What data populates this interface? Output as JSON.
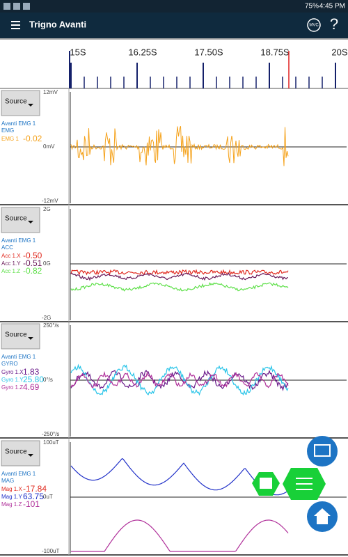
{
  "status_bar": {
    "battery": "75%",
    "time": "4:45 PM"
  },
  "app_bar": {
    "title": "Trigno Avanti",
    "mvc": "MVC",
    "help": "?"
  },
  "timeline": {
    "ticks": [
      "15S",
      "16.25S",
      "17.50S",
      "18.75S",
      "20S"
    ]
  },
  "panels": [
    {
      "button": "Source",
      "sensor": "Avanti EMG 1",
      "kind": "EMG",
      "axis": [
        "12mV",
        "0mV",
        "-12mV"
      ],
      "channels": [
        {
          "name": "EMG 1",
          "value": "-0.02",
          "color": "#f5a21b"
        }
      ]
    },
    {
      "button": "Source",
      "sensor": "Avanti EMG 1",
      "kind": "ACC",
      "axis": [
        "2G",
        "0G",
        "-2G"
      ],
      "channels": [
        {
          "name": "Acc 1.X",
          "value": "-0.50",
          "color": "#e0291e"
        },
        {
          "name": "Acc 1.Y",
          "value": "-0.51",
          "color": "#6a1a5a"
        },
        {
          "name": "Acc 1.Z",
          "value": "-0.82",
          "color": "#5fe04a"
        }
      ]
    },
    {
      "button": "Source",
      "sensor": "Avanti EMG 1",
      "kind": "GYRO",
      "axis": [
        "250°/s",
        "0°/s",
        "-250°/s"
      ],
      "channels": [
        {
          "name": "Gyro 1.X",
          "value": "1.83",
          "color": "#6a1a8a"
        },
        {
          "name": "Gyro 1.Y",
          "value": "25.80",
          "color": "#28c4e8"
        },
        {
          "name": "Gyro 1.Z",
          "value": "4.69",
          "color": "#b0309a"
        }
      ]
    },
    {
      "button": "Source",
      "sensor": "Avanti EMG 1",
      "kind": "MAG",
      "axis": [
        "100uT",
        "0uT",
        "-100uT"
      ],
      "channels": [
        {
          "name": "Mag 1.X",
          "value": "-17.84",
          "color": "#e0291e"
        },
        {
          "name": "Mag 1.Y",
          "value": "63.75",
          "color": "#2030c8"
        },
        {
          "name": "Mag 1.Z",
          "value": "-101",
          "color": "#b0309a"
        }
      ]
    }
  ]
}
